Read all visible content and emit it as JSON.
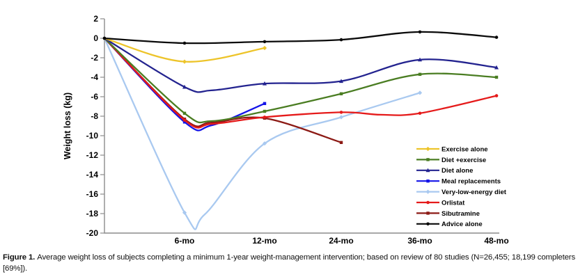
{
  "figure_caption": {
    "label": "Figure 1.",
    "text": "Average weight loss of subjects completing a minimum 1-year weight-management intervention; based on review of 80 studies (N=26,455; 18,199 completers [69%])."
  },
  "chart_data": {
    "type": "line",
    "title": "",
    "xlabel": "",
    "ylabel": "Weight loss (kg)",
    "ylim": [
      -20,
      2
    ],
    "y_ticks": [
      2,
      0,
      -2,
      -4,
      -6,
      -8,
      -10,
      -12,
      -14,
      -16,
      -18,
      -20
    ],
    "x_tick_months": [
      0,
      6,
      12,
      24,
      36,
      48
    ],
    "x_tick_labels": [
      "",
      "6-mo",
      "12-mo",
      "24-mo",
      "36-mo",
      "48-mo"
    ],
    "grid": false,
    "legend_position": "lower right",
    "axis_color": "#8c8c8c",
    "series": [
      {
        "name": "Exercise alone",
        "color": "#EDC42A",
        "marker": "diamond",
        "points": [
          [
            0,
            0,
            0
          ],
          [
            6,
            -2.4,
            1
          ],
          [
            12,
            -1.0,
            1
          ]
        ]
      },
      {
        "name": "Diet +exercise",
        "color": "#4A7D22",
        "marker": "square",
        "points": [
          [
            0,
            0,
            0
          ],
          [
            6,
            -7.7,
            1
          ],
          [
            8,
            -8.5,
            0
          ],
          [
            12,
            -7.5,
            1
          ],
          [
            24,
            -5.7,
            1
          ],
          [
            36,
            -3.7,
            1
          ],
          [
            48,
            -4.0,
            1
          ]
        ]
      },
      {
        "name": "Diet alone",
        "color": "#23238F",
        "marker": "triangle",
        "points": [
          [
            0,
            0,
            0
          ],
          [
            6,
            -5.0,
            1
          ],
          [
            8,
            -5.35,
            0
          ],
          [
            12,
            -4.65,
            1
          ],
          [
            24,
            -4.4,
            1
          ],
          [
            36,
            -2.2,
            1
          ],
          [
            48,
            -3.0,
            1
          ]
        ]
      },
      {
        "name": "Meal replacements",
        "color": "#1414E8",
        "marker": "none",
        "points": [
          [
            0,
            0,
            0
          ],
          [
            6,
            -8.6,
            1
          ],
          [
            8,
            -8.95,
            0
          ],
          [
            12,
            -6.7,
            1
          ]
        ]
      },
      {
        "name": "Very-low-energy diet",
        "color": "#A9C9F0",
        "marker": "diamond",
        "points": [
          [
            0,
            0,
            0
          ],
          [
            6,
            -17.9,
            1
          ],
          [
            7.5,
            -18.1,
            0
          ],
          [
            12,
            -10.8,
            1
          ],
          [
            24,
            -8.1,
            1
          ],
          [
            36,
            -5.6,
            1
          ]
        ]
      },
      {
        "name": "Orlistat",
        "color": "#E51A1A",
        "marker": "circle",
        "points": [
          [
            0,
            0,
            0
          ],
          [
            6,
            -8.4,
            1
          ],
          [
            8,
            -8.8,
            0
          ],
          [
            12,
            -8.1,
            1
          ],
          [
            24,
            -7.6,
            1
          ],
          [
            30,
            -7.85,
            0
          ],
          [
            36,
            -7.7,
            1
          ],
          [
            48,
            -5.9,
            1
          ]
        ]
      },
      {
        "name": "Sibutramine",
        "color": "#8C1A15",
        "marker": "square",
        "points": [
          [
            0,
            0,
            0
          ],
          [
            6,
            -8.3,
            1
          ],
          [
            8,
            -8.65,
            0
          ],
          [
            12,
            -8.2,
            1
          ],
          [
            24,
            -10.7,
            1
          ]
        ]
      },
      {
        "name": "Advice alone",
        "color": "#0A0A0A",
        "marker": "circle",
        "points": [
          [
            0,
            0,
            1
          ],
          [
            6,
            -0.5,
            1
          ],
          [
            12,
            -0.35,
            1
          ],
          [
            24,
            -0.15,
            1
          ],
          [
            36,
            0.65,
            1
          ],
          [
            48,
            0.1,
            1
          ]
        ]
      }
    ],
    "draw_order": [
      4,
      3,
      6,
      5,
      1,
      2,
      0,
      7
    ]
  }
}
